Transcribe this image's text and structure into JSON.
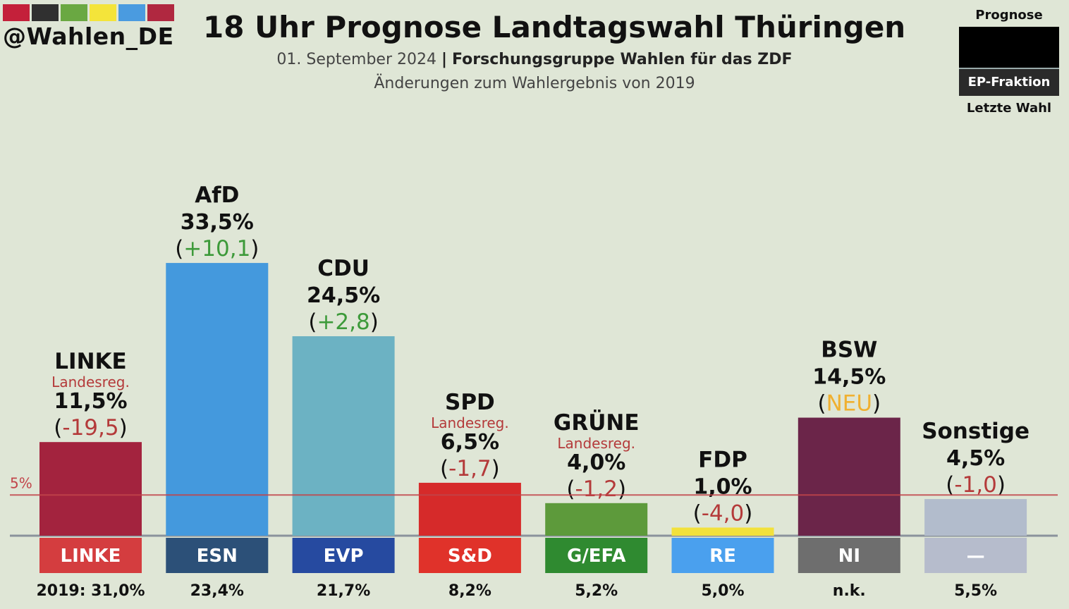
{
  "header": {
    "handle": "@Wahlen_DE",
    "color_strip": [
      "#c4203a",
      "#303030",
      "#6aa842",
      "#f4e43a",
      "#4a9be0",
      "#b02840"
    ],
    "title": "18 Uhr Prognose Landtagswahl Thüringen",
    "date": "01. September 2024",
    "separator": "|",
    "institute": "Forschungsgruppe Wahlen für das ZDF",
    "changes_note": "Änderungen zum Wahlergebnis von 2019"
  },
  "legend": {
    "top": "Prognose",
    "middle": "EP-Fraktion",
    "bottom": "Letzte Wahl"
  },
  "chart_data": {
    "type": "bar",
    "threshold": {
      "value": 5,
      "label": "5%"
    },
    "ylim": [
      0,
      35
    ],
    "categories": [
      "LINKE",
      "AfD",
      "CDU",
      "SPD",
      "GRÜNE",
      "FDP",
      "BSW",
      "Sonstige"
    ],
    "values": [
      11.5,
      33.5,
      24.5,
      6.5,
      4.0,
      1.0,
      14.5,
      4.5
    ],
    "value_labels": [
      "11,5%",
      "33,5%",
      "24,5%",
      "6,5%",
      "4,0%",
      "1,0%",
      "14,5%",
      "4,5%"
    ],
    "change_labels": [
      "-19,5",
      "+10,1",
      "+2,8",
      "-1,7",
      "-1,2",
      "-4,0",
      "NEU",
      "-1,0"
    ],
    "change_colors": [
      "#b43a3a",
      "#3d9a3a",
      "#3d9a3a",
      "#b43a3a",
      "#b43a3a",
      "#b43a3a",
      "#f0b030",
      "#b43a3a"
    ],
    "government_labels": [
      "Landesreg.",
      "",
      "",
      "Landesreg.",
      "Landesreg.",
      "",
      "",
      ""
    ],
    "bar_colors": [
      "#a3233e",
      "#4499dd",
      "#6cb2c3",
      "#d62a2a",
      "#5d9a3b",
      "#f2e13c",
      "#6b2549",
      "#b2bccc"
    ],
    "ep_fractions": [
      "LINKE",
      "ESN",
      "EVP",
      "S&D",
      "G/EFA",
      "RE",
      "NI",
      "—"
    ],
    "ep_colors": [
      "#d43d3f",
      "#2c5078",
      "#264aa0",
      "#e0322a",
      "#2f8a30",
      "#4aa0ee",
      "#6e6e6e",
      "#b6bccc"
    ],
    "previous_labels": [
      "2019: 31,0%",
      "23,4%",
      "21,7%",
      "8,2%",
      "5,2%",
      "5,0%",
      "n.k.",
      "5,5%"
    ]
  }
}
